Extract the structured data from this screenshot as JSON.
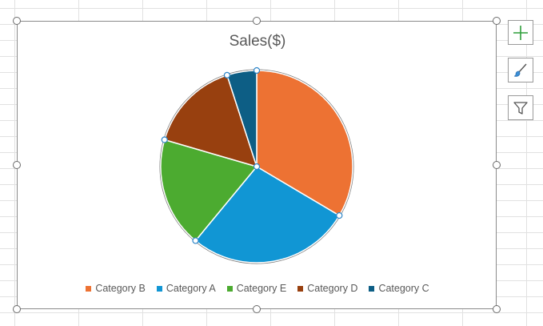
{
  "chart_data": {
    "type": "pie",
    "title": "Sales($)",
    "categories": [
      "Category B",
      "Category A",
      "Category E",
      "Category D",
      "Category C"
    ],
    "values": [
      33.5,
      27.5,
      18.5,
      15.5,
      5.0
    ],
    "colors": [
      "#ED7233",
      "#1196D4",
      "#4CAB30",
      "#98400F",
      "#0D5E85"
    ],
    "start_angle_deg": 0,
    "direction": "clockwise",
    "legend_position": "bottom"
  },
  "toolbar": {
    "chart_elements_icon": "plus-icon",
    "chart_styles_icon": "brush-icon",
    "chart_filters_icon": "funnel-icon"
  }
}
